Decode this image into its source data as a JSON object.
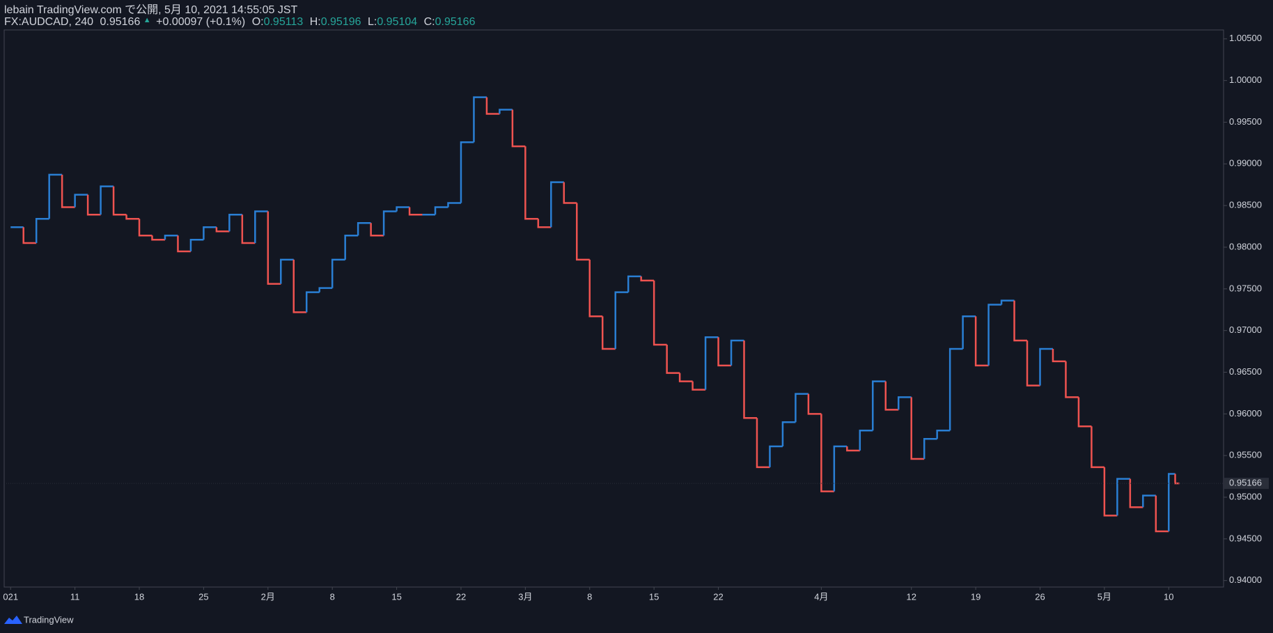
{
  "header": {
    "publisher": "lebain TradingView.com で公開, 5月 10, 2021 14:55:05 JST",
    "symbol": "FX:AUDCAD, 240",
    "price": "0.95166",
    "arrow": "▲",
    "change": "+0.00097 (+0.1%)",
    "o_label": "O:",
    "o": "0.95113",
    "h_label": "H:",
    "h": "0.95196",
    "l_label": "L:",
    "l": "0.95104",
    "c_label": "C:",
    "c": "0.95166"
  },
  "footer": {
    "brand": "TradingView"
  },
  "chart_data": {
    "type": "step",
    "up_color": "#2a7fd4",
    "down_color": "#ef5350",
    "xlim": [
      -0.5,
      94.26
    ],
    "xticks": [
      {
        "value": 0,
        "label": "021"
      },
      {
        "value": 5,
        "label": "11"
      },
      {
        "value": 10,
        "label": "18"
      },
      {
        "value": 15,
        "label": "25"
      },
      {
        "value": 20,
        "label": "2月"
      },
      {
        "value": 25,
        "label": "8"
      },
      {
        "value": 30,
        "label": "15"
      },
      {
        "value": 35,
        "label": "22"
      },
      {
        "value": 40,
        "label": "3月"
      },
      {
        "value": 45,
        "label": "8"
      },
      {
        "value": 50,
        "label": "15"
      },
      {
        "value": 55,
        "label": "22"
      },
      {
        "value": 63,
        "label": "4月"
      },
      {
        "value": 70,
        "label": "12"
      },
      {
        "value": 75,
        "label": "19"
      },
      {
        "value": 80,
        "label": "26"
      },
      {
        "value": 85,
        "label": "5月"
      },
      {
        "value": 90,
        "label": "10"
      }
    ],
    "ylim": [
      0.93922,
      1.00607
    ],
    "yticks": [
      {
        "value": 0.94,
        "label": "0.94000"
      },
      {
        "value": 0.945,
        "label": "0.94500"
      },
      {
        "value": 0.95,
        "label": "0.95000"
      },
      {
        "value": 0.955,
        "label": "0.95500"
      },
      {
        "value": 0.96,
        "label": "0.96000"
      },
      {
        "value": 0.965,
        "label": "0.96500"
      },
      {
        "value": 0.97,
        "label": "0.97000"
      },
      {
        "value": 0.975,
        "label": "0.97500"
      },
      {
        "value": 0.98,
        "label": "0.98000"
      },
      {
        "value": 0.985,
        "label": "0.98500"
      },
      {
        "value": 0.99,
        "label": "0.99000"
      },
      {
        "value": 0.995,
        "label": "0.99500"
      },
      {
        "value": 1.0,
        "label": "1.00000"
      },
      {
        "value": 1.005,
        "label": "1.00500"
      }
    ],
    "last_price": 0.95166,
    "x": [
      0,
      1,
      2,
      3,
      4,
      5,
      6,
      7,
      8,
      9,
      10,
      11,
      12,
      13,
      14,
      15,
      16,
      17,
      18,
      19,
      20,
      21,
      22,
      23,
      24,
      25,
      26,
      27,
      28,
      29,
      30,
      31,
      32,
      33,
      34,
      35,
      36,
      37,
      38,
      39,
      40,
      41,
      42,
      43,
      44,
      45,
      46,
      47,
      48,
      49,
      50,
      51,
      52,
      53,
      54,
      55,
      56,
      57,
      58,
      59,
      60,
      61,
      62,
      63,
      64,
      65,
      66,
      67,
      68,
      69,
      70,
      71,
      72,
      73,
      74,
      75,
      76,
      77,
      78,
      79,
      80,
      81,
      82,
      83,
      84,
      85,
      86,
      87,
      88,
      89,
      90,
      90.5
    ],
    "values": [
      0.9824,
      0.9805,
      0.9834,
      0.9887,
      0.9848,
      0.9863,
      0.9839,
      0.9873,
      0.9839,
      0.9834,
      0.9814,
      0.9809,
      0.9814,
      0.9795,
      0.9809,
      0.9824,
      0.9819,
      0.9839,
      0.9805,
      0.9843,
      0.9756,
      0.9785,
      0.9722,
      0.9746,
      0.9751,
      0.9785,
      0.9814,
      0.9829,
      0.9814,
      0.9843,
      0.9848,
      0.9839,
      0.9839,
      0.9848,
      0.9853,
      0.9926,
      0.998,
      0.996,
      0.9965,
      0.9921,
      0.9834,
      0.9824,
      0.9878,
      0.9853,
      0.9785,
      0.9717,
      0.9678,
      0.9746,
      0.9765,
      0.976,
      0.9683,
      0.9649,
      0.9639,
      0.9629,
      0.9692,
      0.9658,
      0.9688,
      0.9595,
      0.9536,
      0.9561,
      0.959,
      0.9624,
      0.96,
      0.9507,
      0.9561,
      0.9556,
      0.958,
      0.9639,
      0.9605,
      0.962,
      0.9546,
      0.957,
      0.958,
      0.9678,
      0.9717,
      0.9658,
      0.9731,
      0.9736,
      0.9688,
      0.9634,
      0.9678,
      0.9663,
      0.962,
      0.9585,
      0.9536,
      0.9478,
      0.9522,
      0.9488,
      0.9502,
      0.9459,
      0.9528,
      0.95166
    ]
  }
}
